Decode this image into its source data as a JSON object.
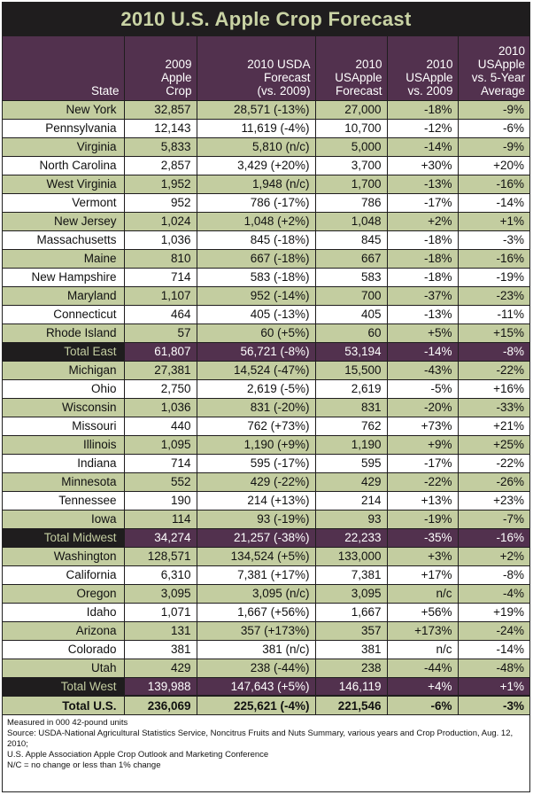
{
  "title": "2010 U.S. Apple Crop Forecast",
  "headers": [
    [
      "State"
    ],
    [
      "2009",
      "Apple",
      "Crop"
    ],
    [
      "2010 USDA",
      "Forecast",
      "(vs. 2009)"
    ],
    [
      "2010",
      "USApple",
      "Forecast"
    ],
    [
      "2010",
      "USApple",
      "vs. 2009"
    ],
    [
      "2010",
      "USApple",
      "vs. 5-Year",
      "Average"
    ]
  ],
  "rows": [
    {
      "kind": "green",
      "cells": [
        "New York",
        "32,857",
        "28,571 (-13%)",
        "27,000",
        "-18%",
        "-9%"
      ]
    },
    {
      "kind": "white",
      "cells": [
        "Pennsylvania",
        "12,143",
        "11,619 (-4%)",
        "10,700",
        "-12%",
        "-6%"
      ]
    },
    {
      "kind": "green",
      "cells": [
        "Virginia",
        "5,833",
        "5,810 (n/c)",
        "5,000",
        "-14%",
        "-9%"
      ]
    },
    {
      "kind": "white",
      "cells": [
        "North Carolina",
        "2,857",
        "3,429 (+20%)",
        "3,700",
        "+30%",
        "+20%"
      ]
    },
    {
      "kind": "green",
      "cells": [
        "West Virginia",
        "1,952",
        "1,948 (n/c)",
        "1,700",
        "-13%",
        "-16%"
      ]
    },
    {
      "kind": "white",
      "cells": [
        "Vermont",
        "952",
        "786 (-17%)",
        "786",
        "-17%",
        "-14%"
      ]
    },
    {
      "kind": "green",
      "cells": [
        "New Jersey",
        "1,024",
        "1,048 (+2%)",
        "1,048",
        "+2%",
        "+1%"
      ]
    },
    {
      "kind": "white",
      "cells": [
        "Massachusetts",
        "1,036",
        "845 (-18%)",
        "845",
        "-18%",
        "-3%"
      ]
    },
    {
      "kind": "green",
      "cells": [
        "Maine",
        "810",
        "667 (-18%)",
        "667",
        "-18%",
        "-16%"
      ]
    },
    {
      "kind": "white",
      "cells": [
        "New Hampshire",
        "714",
        "583 (-18%)",
        "583",
        "-18%",
        "-19%"
      ]
    },
    {
      "kind": "green",
      "cells": [
        "Maryland",
        "1,107",
        "952 (-14%)",
        "700",
        "-37%",
        "-23%"
      ]
    },
    {
      "kind": "white",
      "cells": [
        "Connecticut",
        "464",
        "405 (-13%)",
        "405",
        "-13%",
        "-11%"
      ]
    },
    {
      "kind": "green",
      "cells": [
        "Rhode Island",
        "57",
        "60 (+5%)",
        "60",
        "+5%",
        "+15%"
      ]
    },
    {
      "kind": "total",
      "cells": [
        "Total East",
        "61,807",
        "56,721 (-8%)",
        "53,194",
        "-14%",
        "-8%"
      ]
    },
    {
      "kind": "green",
      "cells": [
        "Michigan",
        "27,381",
        "14,524 (-47%)",
        "15,500",
        "-43%",
        "-22%"
      ]
    },
    {
      "kind": "white",
      "cells": [
        "Ohio",
        "2,750",
        "2,619 (-5%)",
        "2,619",
        "-5%",
        "+16%"
      ]
    },
    {
      "kind": "green",
      "cells": [
        "Wisconsin",
        "1,036",
        "831 (-20%)",
        "831",
        "-20%",
        "-33%"
      ]
    },
    {
      "kind": "white",
      "cells": [
        "Missouri",
        "440",
        "762 (+73%)",
        "762",
        "+73%",
        "+21%"
      ]
    },
    {
      "kind": "green",
      "cells": [
        "Illinois",
        "1,095",
        "1,190 (+9%)",
        "1,190",
        "+9%",
        "+25%"
      ]
    },
    {
      "kind": "white",
      "cells": [
        "Indiana",
        "714",
        "595 (-17%)",
        "595",
        "-17%",
        "-22%"
      ]
    },
    {
      "kind": "green",
      "cells": [
        "Minnesota",
        "552",
        "429 (-22%)",
        "429",
        "-22%",
        "-26%"
      ]
    },
    {
      "kind": "white",
      "cells": [
        "Tennessee",
        "190",
        "214 (+13%)",
        "214",
        "+13%",
        "+23%"
      ]
    },
    {
      "kind": "green",
      "cells": [
        "Iowa",
        "114",
        "93 (-19%)",
        "93",
        "-19%",
        "-7%"
      ]
    },
    {
      "kind": "total",
      "cells": [
        "Total Midwest",
        "34,274",
        "21,257 (-38%)",
        "22,233",
        "-35%",
        "-16%"
      ]
    },
    {
      "kind": "green",
      "cells": [
        "Washington",
        "128,571",
        "134,524 (+5%)",
        "133,000",
        "+3%",
        "+2%"
      ]
    },
    {
      "kind": "white",
      "cells": [
        "California",
        "6,310",
        "7,381 (+17%)",
        "7,381",
        "+17%",
        "-8%"
      ]
    },
    {
      "kind": "green",
      "cells": [
        "Oregon",
        "3,095",
        "3,095 (n/c)",
        "3,095",
        "n/c",
        "-4%"
      ]
    },
    {
      "kind": "white",
      "cells": [
        "Idaho",
        "1,071",
        "1,667 (+56%)",
        "1,667",
        "+56%",
        "+19%"
      ]
    },
    {
      "kind": "green",
      "cells": [
        "Arizona",
        "131",
        "357 (+173%)",
        "357",
        "+173%",
        "-24%"
      ]
    },
    {
      "kind": "white",
      "cells": [
        "Colorado",
        "381",
        "381 (n/c)",
        "381",
        "n/c",
        "-14%"
      ]
    },
    {
      "kind": "green",
      "cells": [
        "Utah",
        "429",
        "238 (-44%)",
        "238",
        "-44%",
        "-48%"
      ]
    },
    {
      "kind": "total",
      "cells": [
        "Total West",
        "139,988",
        "147,643 (+5%)",
        "146,119",
        "+4%",
        "+1%"
      ]
    },
    {
      "kind": "grand",
      "cells": [
        "Total U.S.",
        "236,069",
        "225,621 (-4%)",
        "221,546",
        "-6%",
        "-3%"
      ]
    }
  ],
  "notes": [
    "Measured in 000 42-pound units",
    "Source: USDA-National Agricultural Statistics Service, Noncitrus Fruits and Nuts Summary, various years and Crop Production, Aug. 12, 2010;",
    "U.S. Apple Association Apple Crop Outlook and Marketing Conference",
    "N/C = no change or less than 1% change"
  ]
}
